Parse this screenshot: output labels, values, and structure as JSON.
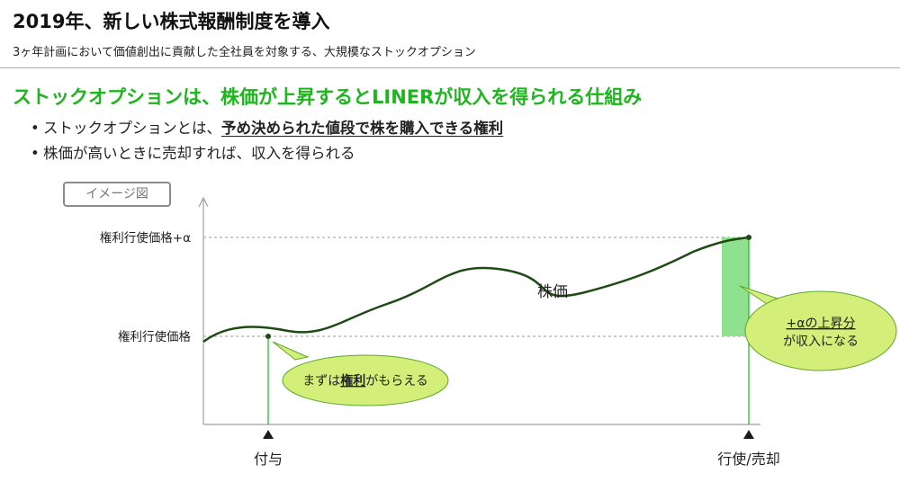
{
  "header": {
    "title": "2019年、新しい株式報酬制度を導入",
    "subtitle": "3ヶ年計画において価値創出に貢献した全社員を対象する、大規模なストックオプション"
  },
  "headline": "ストックオプションは、株価が上昇するとLINERが収入を得られる仕組み",
  "bullets": [
    {
      "text": "ストックオプションとは、",
      "emphasis": "予め決められた値段で株を購入できる権利"
    },
    {
      "text": "株価が高いときに売却すれば、収入を得られる",
      "emphasis": ""
    }
  ],
  "diagram": {
    "tag": "イメージ図",
    "y_labels": {
      "high": "権利行使価格+α",
      "base": "権利行使価格"
    },
    "x_labels": {
      "grant": "付与",
      "exercise": "行使/売却"
    },
    "curve_label": "株価",
    "callout_left": {
      "before": "まずは",
      "emphasis": "権利",
      "after": "がもらえる"
    },
    "callout_right": {
      "line1": "+αの上昇分",
      "line2": "が収入になる"
    },
    "colors": {
      "accent": "#1fb51f",
      "curve": "#1e4a14",
      "gain_fill": "#8fe08f",
      "callout_fill": "#d4ee7a",
      "callout_stroke": "#5aa82a",
      "marker": "#1a1a1a"
    }
  }
}
